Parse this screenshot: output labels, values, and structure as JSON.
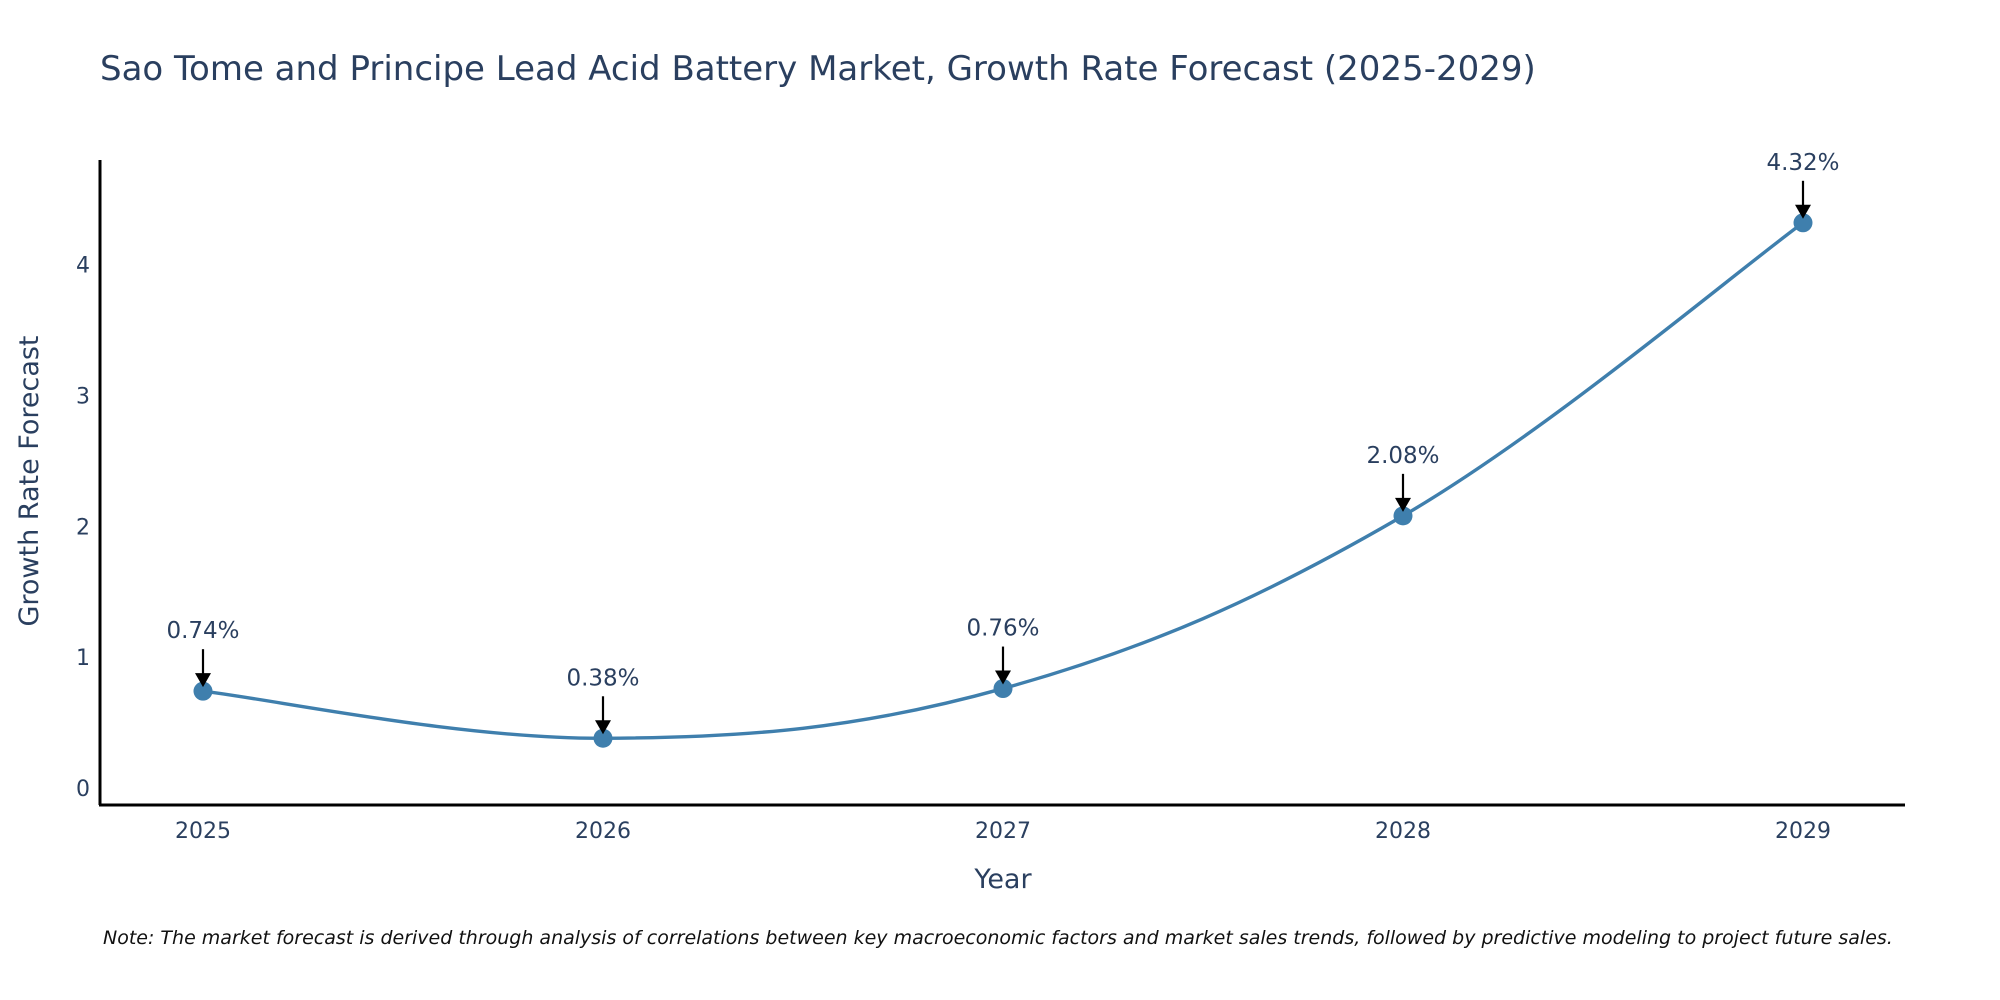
{
  "chart_data": {
    "type": "line",
    "title": "Sao Tome and Principe Lead Acid Battery Market, Growth Rate Forecast (2025-2029)",
    "xlabel": "Year",
    "ylabel": "Growth Rate Forecast",
    "categories": [
      "2025",
      "2026",
      "2027",
      "2028",
      "2029"
    ],
    "series": [
      {
        "name": "Growth Rate Forecast",
        "values": [
          0.74,
          0.38,
          0.76,
          2.08,
          4.32
        ]
      }
    ],
    "data_labels": [
      "0.74%",
      "0.38%",
      "0.76%",
      "2.08%",
      "4.32%"
    ],
    "y_ticks": [
      0,
      1,
      2,
      3,
      4
    ],
    "ylim": [
      -0.13,
      4.8
    ],
    "grid": false,
    "line_color": "#3f7fad",
    "marker_color": "#3f7fad",
    "note": "Note: The market forecast is derived through analysis of correlations between key macroeconomic factors and market sales trends, followed by predictive modeling to project future sales."
  }
}
